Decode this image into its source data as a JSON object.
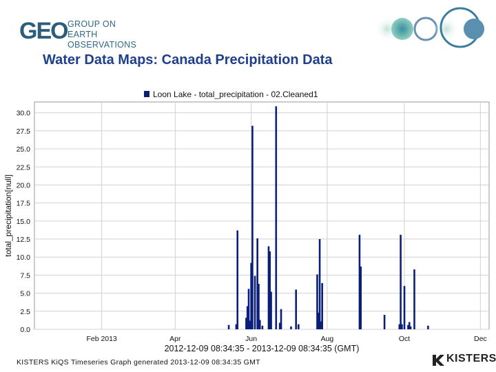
{
  "header": {
    "logo_mark": "GEO",
    "logo_line1": "GROUP ON",
    "logo_line2": "EARTH OBSERVATIONS"
  },
  "slide_title": "Water Data Maps: Canada Precipitation Data",
  "footer": {
    "generated_text": "KISTERS KiQS Timeseries Graph generated 2013-12-09 08:34:35 GMT",
    "brand": "KISTERS"
  },
  "colors": {
    "title": "#1f3f8a",
    "bars": "#0a1f7a",
    "grid": "#d0d0d0"
  },
  "chart_data": {
    "type": "bar",
    "legend": "Loon Lake - total_precipitation - 02.Cleaned1",
    "legend_position": "top-center",
    "ylabel": "total_precipitation[null]",
    "xlabel": "2012-12-09 08:34:35 - 2013-12-09 08:34:35 (GMT)",
    "ylim": [
      0,
      31.5
    ],
    "yticks": [
      "0.0",
      "2.5",
      "5.0",
      "7.5",
      "10.0",
      "12.5",
      "15.0",
      "17.5",
      "20.0",
      "22.5",
      "25.0",
      "27.5",
      "30.0"
    ],
    "xlim_days": [
      0,
      365
    ],
    "xticks": [
      {
        "label": "Feb 2013",
        "day": 54
      },
      {
        "label": "Apr",
        "day": 113
      },
      {
        "label": "Jun",
        "day": 174
      },
      {
        "label": "Aug",
        "day": 235
      },
      {
        "label": "Oct",
        "day": 297
      },
      {
        "label": "Dec",
        "day": 358
      }
    ],
    "grid": true,
    "bars": [
      {
        "day": 156,
        "value": 0.6
      },
      {
        "day": 162,
        "value": 0.7
      },
      {
        "day": 163,
        "value": 13.7
      },
      {
        "day": 170,
        "value": 1.6
      },
      {
        "day": 171,
        "value": 3.2
      },
      {
        "day": 172,
        "value": 5.6
      },
      {
        "day": 173,
        "value": 1.2
      },
      {
        "day": 174,
        "value": 9.2
      },
      {
        "day": 175,
        "value": 28.2
      },
      {
        "day": 177,
        "value": 7.4
      },
      {
        "day": 179,
        "value": 12.6
      },
      {
        "day": 180,
        "value": 6.3
      },
      {
        "day": 181,
        "value": 1.3
      },
      {
        "day": 183,
        "value": 0.5
      },
      {
        "day": 188,
        "value": 11.5
      },
      {
        "day": 189,
        "value": 10.8
      },
      {
        "day": 190,
        "value": 5.2
      },
      {
        "day": 194,
        "value": 30.9
      },
      {
        "day": 197,
        "value": 0.9
      },
      {
        "day": 198,
        "value": 2.8
      },
      {
        "day": 206,
        "value": 0.4
      },
      {
        "day": 210,
        "value": 5.5
      },
      {
        "day": 212,
        "value": 0.7
      },
      {
        "day": 227,
        "value": 7.6
      },
      {
        "day": 228,
        "value": 2.3
      },
      {
        "day": 229,
        "value": 12.5
      },
      {
        "day": 230,
        "value": 1.1
      },
      {
        "day": 231,
        "value": 6.4
      },
      {
        "day": 261,
        "value": 13.1
      },
      {
        "day": 262,
        "value": 8.7
      },
      {
        "day": 281,
        "value": 2.0
      },
      {
        "day": 293,
        "value": 0.7
      },
      {
        "day": 294,
        "value": 13.1
      },
      {
        "day": 295,
        "value": 0.7
      },
      {
        "day": 297,
        "value": 6.0
      },
      {
        "day": 300,
        "value": 0.6
      },
      {
        "day": 301,
        "value": 1.0
      },
      {
        "day": 302,
        "value": 0.4
      },
      {
        "day": 305,
        "value": 8.3
      },
      {
        "day": 316,
        "value": 0.5
      }
    ]
  }
}
